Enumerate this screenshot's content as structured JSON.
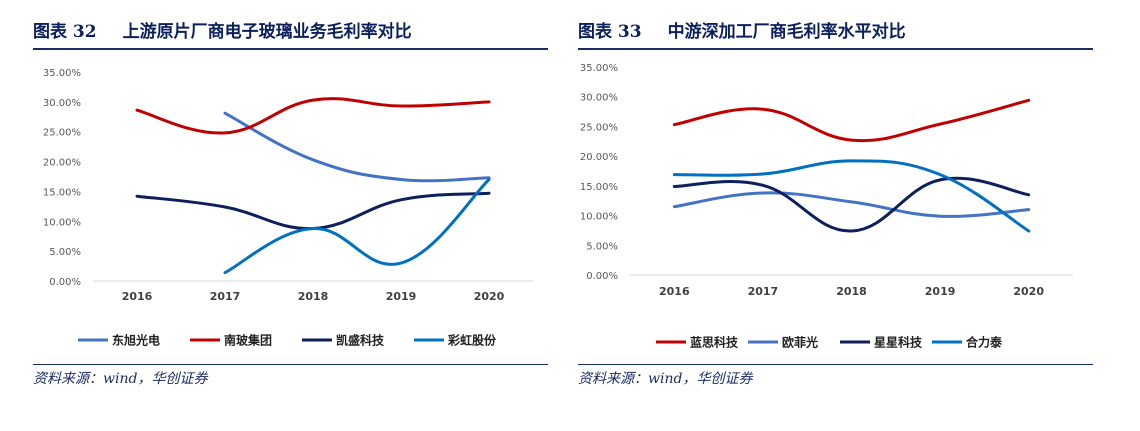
{
  "figures": [
    {
      "title_num": "图表 32",
      "title_text": "上游原片厂商电子玻璃业务毛利率对比",
      "source": "资料来源：wind，华创证券"
    },
    {
      "title_num": "图表 33",
      "title_text": "中游深加工厂商毛利率水平对比",
      "source": "资料来源：wind，华创证券"
    }
  ],
  "chart_data": [
    {
      "type": "line",
      "title": "",
      "xlabel": "",
      "ylabel": "",
      "x": [
        "2016",
        "2017",
        "2018",
        "2019",
        "2020"
      ],
      "ylim": [
        0,
        35
      ],
      "yticks": [
        "0.00%",
        "5.00%",
        "10.00%",
        "15.00%",
        "20.00%",
        "25.00%",
        "30.00%",
        "35.00%"
      ],
      "smooth": true,
      "grid": false,
      "legend": "bottom",
      "series": [
        {
          "name": "东旭光电",
          "color": "#4472c4",
          "values": [
            null,
            28.1,
            20.3,
            17.0,
            17.3
          ]
        },
        {
          "name": "南玻集团",
          "color": "#c00000",
          "values": [
            28.6,
            24.8,
            30.3,
            29.3,
            30.0
          ]
        },
        {
          "name": "凯盛科技",
          "color": "#0d1f5c",
          "values": [
            14.2,
            12.4,
            8.8,
            13.6,
            14.7
          ]
        },
        {
          "name": "彩虹股份",
          "color": "#0070c0",
          "values": [
            null,
            1.4,
            8.8,
            3.0,
            17.0
          ]
        }
      ]
    },
    {
      "type": "line",
      "title": "",
      "xlabel": "",
      "ylabel": "",
      "x": [
        "2016",
        "2017",
        "2018",
        "2019",
        "2020"
      ],
      "ylim": [
        0,
        35
      ],
      "yticks": [
        "0.00%",
        "5.00%",
        "10.00%",
        "15.00%",
        "20.00%",
        "25.00%",
        "30.00%",
        "35.00%"
      ],
      "smooth": true,
      "grid": false,
      "legend": "bottom",
      "series": [
        {
          "name": "蓝思科技",
          "color": "#c00000",
          "values": [
            25.3,
            27.9,
            22.7,
            25.4,
            29.4
          ]
        },
        {
          "name": "欧菲光",
          "color": "#4472c4",
          "values": [
            11.5,
            13.8,
            12.3,
            9.9,
            11.0
          ]
        },
        {
          "name": "星星科技",
          "color": "#0d1f5c",
          "values": [
            14.9,
            15.1,
            7.4,
            16.0,
            13.5
          ]
        },
        {
          "name": "合力泰",
          "color": "#0070c0",
          "values": [
            16.9,
            17.0,
            19.2,
            16.9,
            7.4
          ]
        }
      ]
    }
  ]
}
